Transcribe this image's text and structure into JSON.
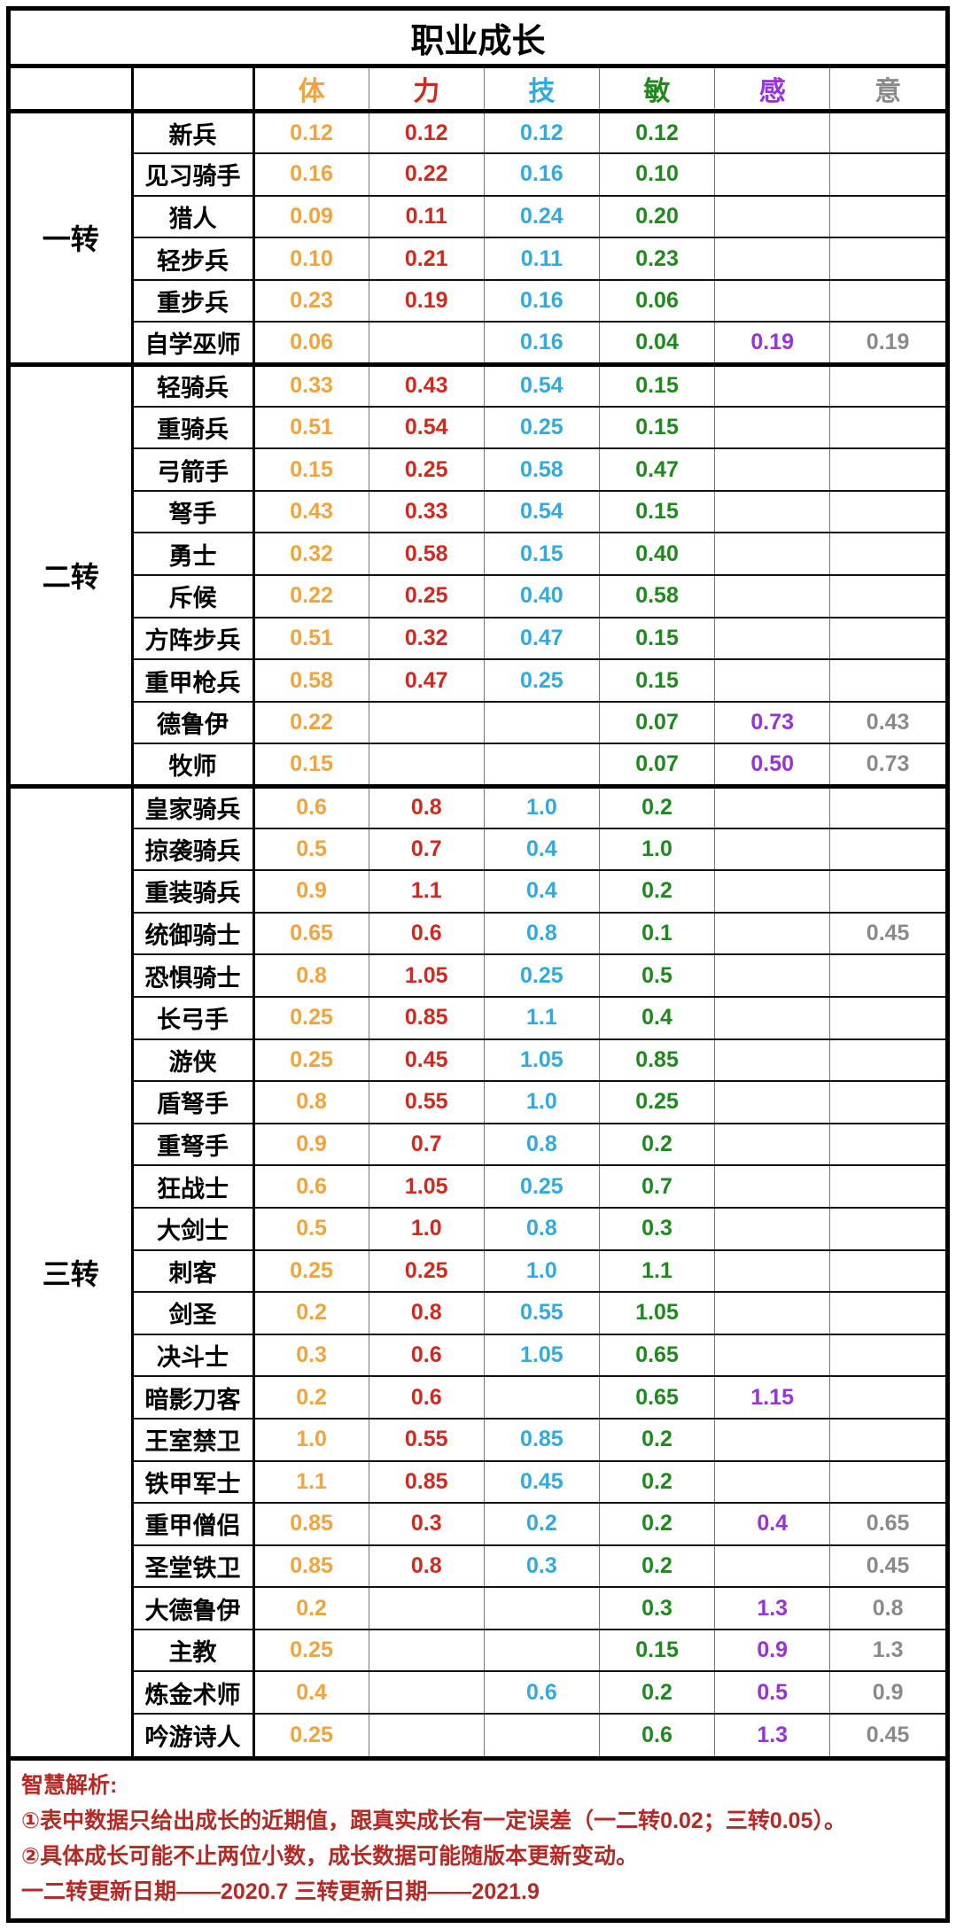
{
  "title": "职业成长",
  "chart_data": {
    "type": "table",
    "title": "职业成长",
    "stat_columns": [
      {
        "key": "vitality",
        "label": "体",
        "color": "#F2A33C"
      },
      {
        "key": "strength",
        "label": "力",
        "color": "#D3281E"
      },
      {
        "key": "technique",
        "label": "技",
        "color": "#31AADF"
      },
      {
        "key": "agility",
        "label": "敏",
        "color": "#1E8A1E"
      },
      {
        "key": "perception",
        "label": "感",
        "color": "#9733DB"
      },
      {
        "key": "will",
        "label": "意",
        "color": "#8A8A8A"
      }
    ],
    "groups": [
      {
        "label": "一转",
        "rows": [
          {
            "name": "新兵",
            "values": [
              "0.12",
              "0.12",
              "0.12",
              "0.12",
              "",
              ""
            ]
          },
          {
            "name": "见习骑手",
            "values": [
              "0.16",
              "0.22",
              "0.16",
              "0.10",
              "",
              ""
            ]
          },
          {
            "name": "猎人",
            "values": [
              "0.09",
              "0.11",
              "0.24",
              "0.20",
              "",
              ""
            ]
          },
          {
            "name": "轻步兵",
            "values": [
              "0.10",
              "0.21",
              "0.11",
              "0.23",
              "",
              ""
            ]
          },
          {
            "name": "重步兵",
            "values": [
              "0.23",
              "0.19",
              "0.16",
              "0.06",
              "",
              ""
            ]
          },
          {
            "name": "自学巫师",
            "values": [
              "0.06",
              "",
              "0.16",
              "0.04",
              "0.19",
              "0.19"
            ]
          }
        ]
      },
      {
        "label": "二转",
        "rows": [
          {
            "name": "轻骑兵",
            "values": [
              "0.33",
              "0.43",
              "0.54",
              "0.15",
              "",
              ""
            ]
          },
          {
            "name": "重骑兵",
            "values": [
              "0.51",
              "0.54",
              "0.25",
              "0.15",
              "",
              ""
            ]
          },
          {
            "name": "弓箭手",
            "values": [
              "0.15",
              "0.25",
              "0.58",
              "0.47",
              "",
              ""
            ]
          },
          {
            "name": "弩手",
            "values": [
              "0.43",
              "0.33",
              "0.54",
              "0.15",
              "",
              ""
            ]
          },
          {
            "name": "勇士",
            "values": [
              "0.32",
              "0.58",
              "0.15",
              "0.40",
              "",
              ""
            ]
          },
          {
            "name": "斥候",
            "values": [
              "0.22",
              "0.25",
              "0.40",
              "0.58",
              "",
              ""
            ]
          },
          {
            "name": "方阵步兵",
            "values": [
              "0.51",
              "0.32",
              "0.47",
              "0.15",
              "",
              ""
            ]
          },
          {
            "name": "重甲枪兵",
            "values": [
              "0.58",
              "0.47",
              "0.25",
              "0.15",
              "",
              ""
            ]
          },
          {
            "name": "德鲁伊",
            "values": [
              "0.22",
              "",
              "",
              "0.07",
              "0.73",
              "0.43"
            ]
          },
          {
            "name": "牧师",
            "values": [
              "0.15",
              "",
              "",
              "0.07",
              "0.50",
              "0.73"
            ]
          }
        ]
      },
      {
        "label": "三转",
        "rows": [
          {
            "name": "皇家骑兵",
            "values": [
              "0.6",
              "0.8",
              "1.0",
              "0.2",
              "",
              ""
            ]
          },
          {
            "name": "掠袭骑兵",
            "values": [
              "0.5",
              "0.7",
              "0.4",
              "1.0",
              "",
              ""
            ]
          },
          {
            "name": "重装骑兵",
            "values": [
              "0.9",
              "1.1",
              "0.4",
              "0.2",
              "",
              ""
            ]
          },
          {
            "name": "统御骑士",
            "values": [
              "0.65",
              "0.6",
              "0.8",
              "0.1",
              "",
              "0.45"
            ]
          },
          {
            "name": "恐惧骑士",
            "values": [
              "0.8",
              "1.05",
              "0.25",
              "0.5",
              "",
              ""
            ]
          },
          {
            "name": "长弓手",
            "values": [
              "0.25",
              "0.85",
              "1.1",
              "0.4",
              "",
              ""
            ]
          },
          {
            "name": "游侠",
            "values": [
              "0.25",
              "0.45",
              "1.05",
              "0.85",
              "",
              ""
            ]
          },
          {
            "name": "盾弩手",
            "values": [
              "0.8",
              "0.55",
              "1.0",
              "0.25",
              "",
              ""
            ]
          },
          {
            "name": "重弩手",
            "values": [
              "0.9",
              "0.7",
              "0.8",
              "0.2",
              "",
              ""
            ]
          },
          {
            "name": "狂战士",
            "values": [
              "0.6",
              "1.05",
              "0.25",
              "0.7",
              "",
              ""
            ]
          },
          {
            "name": "大剑士",
            "values": [
              "0.5",
              "1.0",
              "0.8",
              "0.3",
              "",
              ""
            ]
          },
          {
            "name": "刺客",
            "values": [
              "0.25",
              "0.25",
              "1.0",
              "1.1",
              "",
              ""
            ]
          },
          {
            "name": "剑圣",
            "values": [
              "0.2",
              "0.8",
              "0.55",
              "1.05",
              "",
              ""
            ]
          },
          {
            "name": "决斗士",
            "values": [
              "0.3",
              "0.6",
              "1.05",
              "0.65",
              "",
              ""
            ]
          },
          {
            "name": "暗影刀客",
            "values": [
              "0.2",
              "0.6",
              "",
              "0.65",
              "1.15",
              ""
            ]
          },
          {
            "name": "王室禁卫",
            "values": [
              "1.0",
              "0.55",
              "0.85",
              "0.2",
              "",
              ""
            ]
          },
          {
            "name": "铁甲军士",
            "values": [
              "1.1",
              "0.85",
              "0.45",
              "0.2",
              "",
              ""
            ]
          },
          {
            "name": "重甲僧侣",
            "values": [
              "0.85",
              "0.3",
              "0.2",
              "0.2",
              "0.4",
              "0.65"
            ]
          },
          {
            "name": "圣堂铁卫",
            "values": [
              "0.85",
              "0.8",
              "0.3",
              "0.2",
              "",
              "0.45"
            ]
          },
          {
            "name": "大德鲁伊",
            "values": [
              "0.2",
              "",
              "",
              "0.3",
              "1.3",
              "0.8"
            ]
          },
          {
            "name": "主教",
            "values": [
              "0.25",
              "",
              "",
              "0.15",
              "0.9",
              "1.3"
            ]
          },
          {
            "name": "炼金术师",
            "values": [
              "0.4",
              "",
              "0.6",
              "0.2",
              "0.5",
              "0.9"
            ]
          },
          {
            "name": "吟游诗人",
            "values": [
              "0.25",
              "",
              "",
              "0.6",
              "1.3",
              "0.45"
            ]
          }
        ]
      }
    ]
  },
  "footer": {
    "color": "#B52A25",
    "lines": [
      "智慧解析:",
      "①表中数据只给出成长的近期值，跟真实成长有一定误差（一二转0.02；三转0.05）。",
      "②具体成长可能不止两位小数，成长数据可能随版本更新变动。",
      "一二转更新日期——2020.7 三转更新日期——2021.9"
    ]
  }
}
